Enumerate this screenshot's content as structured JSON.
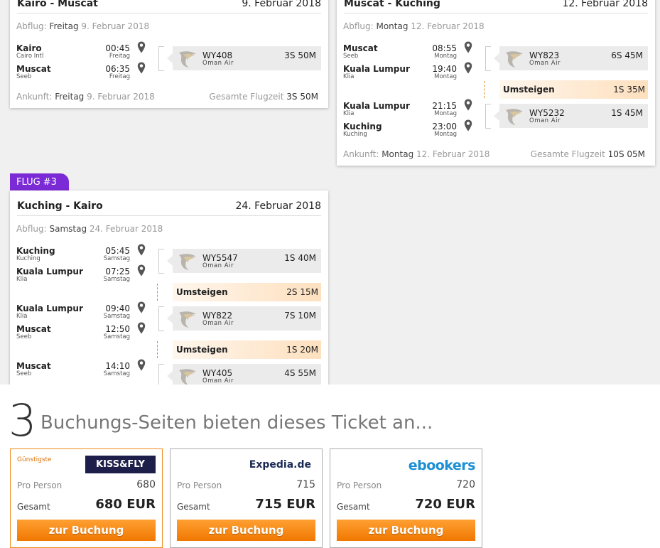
{
  "flights": [
    {
      "route": "Kairo - Muscat",
      "date": "9. Februar 2018",
      "departure": {
        "label": "Abflug:",
        "day": "Freitag",
        "date": "9. Februar 2018"
      },
      "segments": [
        {
          "from": {
            "city": "Kairo",
            "airport": "Cairo Intl",
            "time": "00:45",
            "day": "Freitag"
          },
          "to": {
            "city": "Muscat",
            "airport": "Seeb",
            "time": "06:35",
            "day": "Freitag"
          },
          "flight": {
            "number": "WY408",
            "airline": "Oman Air",
            "duration": "3S 50M"
          }
        }
      ],
      "layovers": [],
      "arrival": {
        "label": "Ankunft:",
        "day": "Freitag",
        "date": "9. Februar 2018"
      },
      "total": {
        "label": "Gesamte Flugzeit",
        "duration": "3S 50M"
      }
    },
    {
      "route": "Muscat - Kuching",
      "date": "12. Februar 2018",
      "departure": {
        "label": "Abflug:",
        "day": "Montag",
        "date": "12. Februar 2018"
      },
      "segments": [
        {
          "from": {
            "city": "Muscat",
            "airport": "Seeb",
            "time": "08:55",
            "day": "Montag"
          },
          "to": {
            "city": "Kuala Lumpur",
            "airport": "Klia",
            "time": "19:40",
            "day": "Montag"
          },
          "flight": {
            "number": "WY823",
            "airline": "Oman Air",
            "duration": "6S 45M"
          }
        },
        {
          "from": {
            "city": "Kuala Lumpur",
            "airport": "Klia",
            "time": "21:15",
            "day": "Montag"
          },
          "to": {
            "city": "Kuching",
            "airport": "Kuching",
            "time": "23:00",
            "day": "Montag"
          },
          "flight": {
            "number": "WY5232",
            "airline": "Oman Air",
            "duration": "1S 45M"
          }
        }
      ],
      "layovers": [
        {
          "label": "Umsteigen",
          "duration": "1S 35M"
        }
      ],
      "arrival": {
        "label": "Ankunft:",
        "day": "Montag",
        "date": "12. Februar 2018"
      },
      "total": {
        "label": "Gesamte Flugzeit",
        "duration": "10S 05M"
      }
    },
    {
      "badge": "FLUG #3",
      "route": "Kuching - Kairo",
      "date": "24. Februar 2018",
      "departure": {
        "label": "Abflug:",
        "day": "Samstag",
        "date": "24. Februar 2018"
      },
      "segments": [
        {
          "from": {
            "city": "Kuching",
            "airport": "Kuching",
            "time": "05:45",
            "day": "Samstag"
          },
          "to": {
            "city": "Kuala Lumpur",
            "airport": "Klia",
            "time": "07:25",
            "day": "Samstag"
          },
          "flight": {
            "number": "WY5547",
            "airline": "Oman Air",
            "duration": "1S 40M"
          }
        },
        {
          "from": {
            "city": "Kuala Lumpur",
            "airport": "Klia",
            "time": "09:40",
            "day": "Samstag"
          },
          "to": {
            "city": "Muscat",
            "airport": "Seeb",
            "time": "12:50",
            "day": "Samstag"
          },
          "flight": {
            "number": "WY822",
            "airline": "Oman Air",
            "duration": "7S 10M"
          }
        },
        {
          "from": {
            "city": "Muscat",
            "airport": "Seeb",
            "time": "14:10",
            "day": "Samstag"
          },
          "flight": {
            "number": "WY405",
            "airline": "Oman Air",
            "duration": "4S 55M"
          }
        }
      ],
      "layovers": [
        {
          "label": "Umsteigen",
          "duration": "2S 15M"
        },
        {
          "label": "Umsteigen",
          "duration": "1S 20M"
        }
      ]
    }
  ],
  "offers": {
    "count": 3,
    "heading": "Buchungs-Seiten bieten dieses Ticket an...",
    "items": [
      {
        "badge": "Günstigste",
        "provider": "KISS&FLY",
        "per_person_label": "Pro Person",
        "per_person": 680,
        "total_label": "Gesamt",
        "total": "680 EUR",
        "button": "zur Buchung"
      },
      {
        "provider": "Expedia.de",
        "per_person_label": "Pro Person",
        "per_person": 715,
        "total_label": "Gesamt",
        "total": "715 EUR",
        "button": "zur Buchung"
      },
      {
        "provider": "ebookers",
        "per_person_label": "Pro Person",
        "per_person": 720,
        "total_label": "Gesamt",
        "total": "720 EUR",
        "button": "zur Buchung"
      }
    ]
  }
}
